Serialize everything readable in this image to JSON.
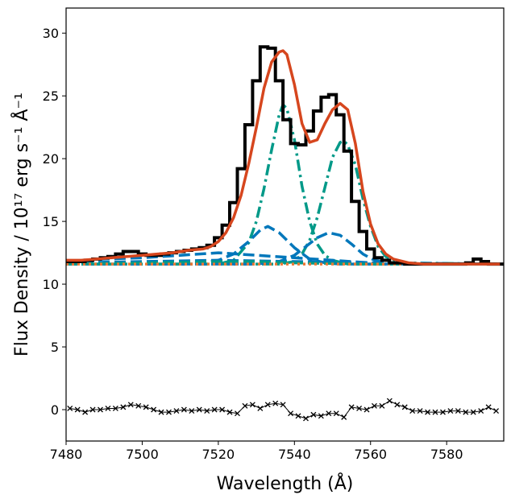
{
  "chart_data": {
    "type": "line",
    "title": "",
    "xlabel": "Wavelength (Å)",
    "ylabel": "Flux Density / 10¹⁷ erg s⁻¹ Å⁻¹",
    "xlim": [
      7480,
      7595
    ],
    "ylim": [
      -2.5,
      32
    ],
    "x_ticks": [
      7480,
      7500,
      7520,
      7540,
      7560,
      7580
    ],
    "y_ticks": [
      0,
      5,
      10,
      15,
      20,
      25,
      30
    ],
    "grid": false,
    "legend": "none",
    "continuum_level": 11.6,
    "observed_spectrum": {
      "style": "step",
      "color": "#000000",
      "x": [
        7480,
        7482,
        7484,
        7486,
        7488,
        7490,
        7492,
        7494,
        7496,
        7498,
        7500,
        7502,
        7504,
        7506,
        7508,
        7510,
        7512,
        7514,
        7516,
        7518,
        7520,
        7522,
        7524,
        7526,
        7528,
        7530,
        7532,
        7534,
        7536,
        7538,
        7540,
        7542,
        7544,
        7546,
        7548,
        7550,
        7552,
        7554,
        7556,
        7558,
        7560,
        7562,
        7564,
        7566,
        7568,
        7570,
        7572,
        7574,
        7576,
        7578,
        7580,
        7582,
        7584,
        7586,
        7588,
        7590,
        7592,
        7594
      ],
      "y": [
        11.8,
        11.8,
        11.8,
        11.9,
        12.0,
        12.1,
        12.2,
        12.4,
        12.6,
        12.6,
        12.4,
        12.3,
        12.3,
        12.4,
        12.5,
        12.6,
        12.7,
        12.8,
        12.9,
        13.1,
        13.7,
        14.7,
        16.5,
        19.2,
        22.7,
        26.2,
        28.9,
        28.8,
        26.2,
        23.1,
        21.2,
        21.1,
        22.2,
        23.8,
        24.9,
        25.1,
        23.5,
        20.6,
        16.6,
        14.2,
        12.8,
        12.1,
        11.9,
        11.7,
        11.7,
        11.6,
        11.6,
        11.6,
        11.6,
        11.6,
        11.6,
        11.6,
        11.6,
        11.7,
        12.0,
        11.8,
        11.6,
        11.6
      ]
    },
    "series": [
      {
        "name": "",
        "style": "solid",
        "color": "#d6461e",
        "x": [
          7480,
          7484,
          7488,
          7492,
          7496,
          7500,
          7504,
          7508,
          7512,
          7516,
          7518,
          7520,
          7522,
          7524,
          7526,
          7528,
          7530,
          7532,
          7534,
          7536,
          7537,
          7538,
          7540,
          7542,
          7544,
          7546,
          7548,
          7550,
          7552,
          7554,
          7556,
          7558,
          7560,
          7562,
          7564,
          7566,
          7570,
          7574,
          7580,
          7586,
          7594
        ],
        "y": [
          11.9,
          11.9,
          12.0,
          12.1,
          12.2,
          12.3,
          12.4,
          12.5,
          12.7,
          12.8,
          13.0,
          13.4,
          14.1,
          15.3,
          17.1,
          19.6,
          22.5,
          25.6,
          27.7,
          28.5,
          28.6,
          28.3,
          25.9,
          22.8,
          21.3,
          21.5,
          22.8,
          23.9,
          24.4,
          23.9,
          21.2,
          17.4,
          14.8,
          13.2,
          12.4,
          12.0,
          11.7,
          11.6,
          11.6,
          11.6,
          11.6
        ]
      },
      {
        "name": "",
        "style": "dashdot",
        "color": "#009988",
        "x": [
          7480,
          7520,
          7524,
          7528,
          7530,
          7532,
          7534,
          7536,
          7537,
          7538,
          7540,
          7542,
          7544,
          7546,
          7548,
          7550,
          7554,
          7560,
          7594
        ],
        "y": [
          11.6,
          11.6,
          11.9,
          13.3,
          15.0,
          17.6,
          20.7,
          23.5,
          24.3,
          24.0,
          21.5,
          17.8,
          15.0,
          13.2,
          12.3,
          11.9,
          11.6,
          11.6,
          11.6
        ]
      },
      {
        "name": "",
        "style": "dashdot",
        "color": "#009988",
        "x": [
          7480,
          7536,
          7540,
          7542,
          7544,
          7546,
          7548,
          7550,
          7552,
          7553,
          7554,
          7556,
          7558,
          7560,
          7562,
          7564,
          7568,
          7594
        ],
        "y": [
          11.6,
          11.6,
          11.8,
          12.4,
          13.5,
          15.3,
          17.7,
          20.1,
          21.3,
          21.4,
          21.1,
          19.5,
          16.8,
          14.6,
          13.0,
          12.2,
          11.7,
          11.6
        ]
      },
      {
        "name": "",
        "style": "dashed",
        "color": "#0077bb",
        "x": [
          7480,
          7510,
          7516,
          7520,
          7524,
          7528,
          7531,
          7533,
          7536,
          7540,
          7544,
          7548,
          7552,
          7556,
          7560,
          7594
        ],
        "y": [
          11.6,
          11.6,
          11.7,
          11.9,
          12.4,
          13.4,
          14.3,
          14.6,
          14.1,
          12.9,
          12.0,
          11.7,
          11.6,
          11.6,
          11.6,
          11.6
        ]
      },
      {
        "name": "",
        "style": "dashed",
        "color": "#0077bb",
        "x": [
          7480,
          7530,
          7536,
          7540,
          7543,
          7546,
          7549,
          7552,
          7555,
          7558,
          7561,
          7565,
          7570,
          7594
        ],
        "y": [
          11.6,
          11.6,
          11.8,
          12.3,
          13.0,
          13.7,
          14.1,
          13.9,
          13.2,
          12.4,
          11.9,
          11.7,
          11.6,
          11.6
        ]
      },
      {
        "name": "",
        "style": "dashed",
        "color": "#0077bb",
        "x": [
          7480,
          7490,
          7500,
          7510,
          7520,
          7530,
          7540,
          7550,
          7560,
          7570,
          7580,
          7594
        ],
        "y": [
          11.8,
          12.0,
          12.1,
          12.3,
          12.5,
          12.3,
          12.1,
          11.9,
          11.7,
          11.6,
          11.6,
          11.6
        ]
      },
      {
        "name": "",
        "style": "dashed",
        "color": "#0077bb",
        "x": [
          7480,
          7500,
          7520,
          7540,
          7560,
          7594
        ],
        "y": [
          11.7,
          11.8,
          11.9,
          11.8,
          11.7,
          11.6
        ]
      },
      {
        "name": "",
        "style": "dashed",
        "color": "#009988",
        "x": [
          7480,
          7500,
          7520,
          7530,
          7540,
          7560,
          7594
        ],
        "y": [
          11.6,
          11.7,
          11.8,
          11.8,
          11.7,
          11.6,
          11.6
        ]
      },
      {
        "name": "",
        "style": "dotted",
        "color": "#ee7733",
        "x": [
          7480,
          7594
        ],
        "y": [
          11.6,
          11.6
        ]
      }
    ],
    "residuals": {
      "marker": "x",
      "color": "#000000",
      "x": [
        7481,
        7483,
        7485,
        7487,
        7489,
        7491,
        7493,
        7495,
        7497,
        7499,
        7501,
        7503,
        7505,
        7507,
        7509,
        7511,
        7513,
        7515,
        7517,
        7519,
        7521,
        7523,
        7525,
        7527,
        7529,
        7531,
        7533,
        7535,
        7537,
        7539,
        7541,
        7543,
        7545,
        7547,
        7549,
        7551,
        7553,
        7555,
        7557,
        7559,
        7561,
        7563,
        7565,
        7567,
        7569,
        7571,
        7573,
        7575,
        7577,
        7579,
        7581,
        7583,
        7585,
        7587,
        7589,
        7591,
        7593
      ],
      "y": [
        0.1,
        0.0,
        -0.2,
        0.0,
        0.0,
        0.1,
        0.1,
        0.2,
        0.4,
        0.3,
        0.2,
        0.0,
        -0.2,
        -0.2,
        -0.1,
        0.0,
        -0.1,
        0.0,
        -0.1,
        0.0,
        0.0,
        -0.2,
        -0.3,
        0.3,
        0.4,
        0.1,
        0.4,
        0.5,
        0.4,
        -0.3,
        -0.5,
        -0.7,
        -0.4,
        -0.5,
        -0.3,
        -0.3,
        -0.6,
        0.2,
        0.1,
        0.0,
        0.3,
        0.3,
        0.7,
        0.4,
        0.2,
        -0.1,
        -0.1,
        -0.2,
        -0.2,
        -0.2,
        -0.1,
        -0.1,
        -0.2,
        -0.2,
        -0.1,
        0.2,
        -0.1
      ]
    }
  }
}
